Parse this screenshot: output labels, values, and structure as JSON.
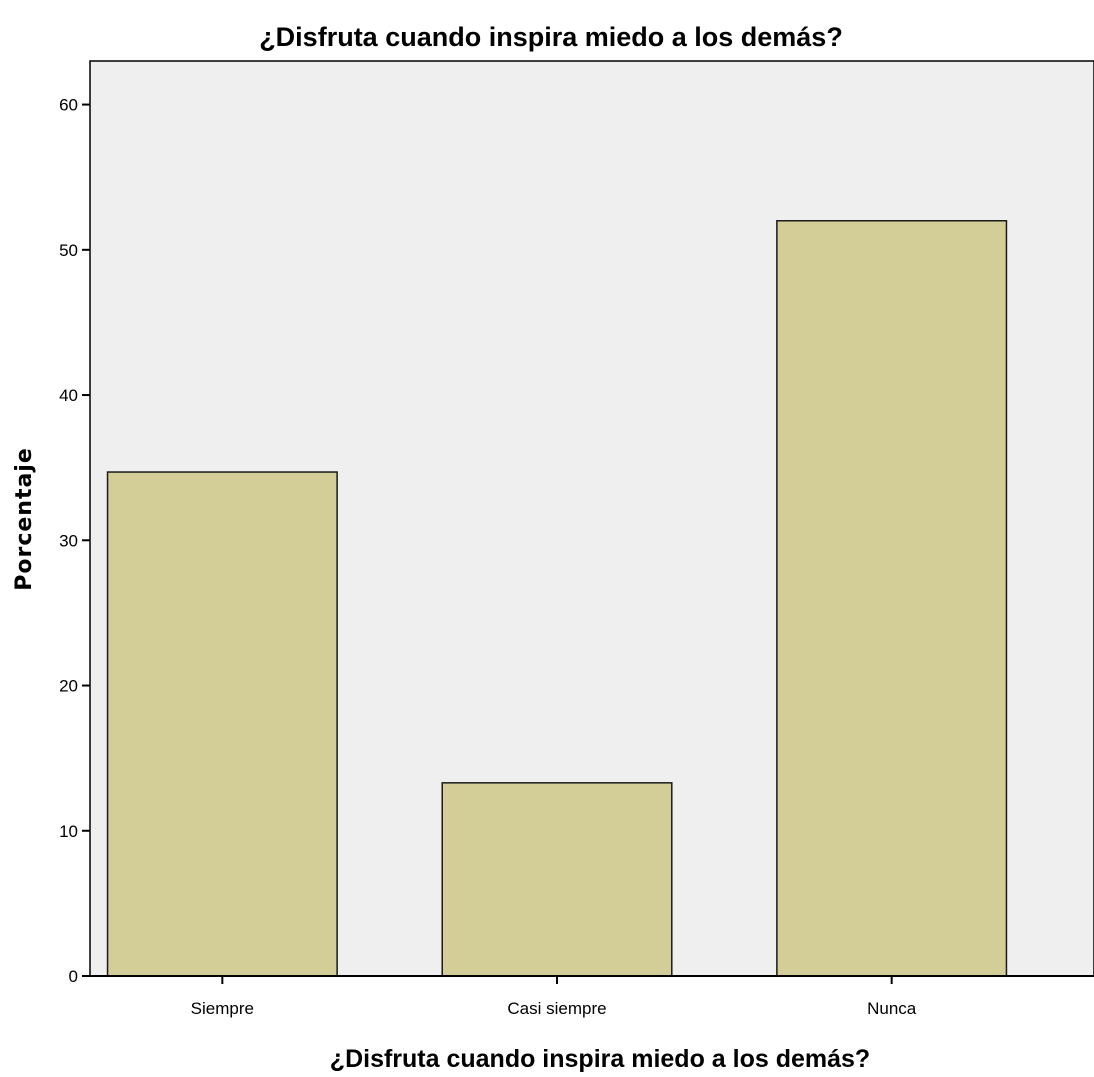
{
  "chart_data": {
    "type": "bar",
    "title": "¿Disfruta cuando inspira miedo a los demás?",
    "xlabel": "¿Disfruta cuando inspira miedo a los demás?",
    "ylabel": "Porcentaje",
    "categories": [
      "Siempre",
      "Casi siempre",
      "Nunca"
    ],
    "values": [
      34.7,
      13.3,
      52.0
    ],
    "ylim": [
      0,
      63
    ],
    "yticks": [
      0,
      10,
      20,
      30,
      40,
      50,
      60
    ],
    "grid": false,
    "legend": "none",
    "colors": {
      "bar_fill": "#d3ce98",
      "bar_stroke": "#1a1a1a",
      "plot_background": "#efefef",
      "axis": "#000000"
    }
  }
}
